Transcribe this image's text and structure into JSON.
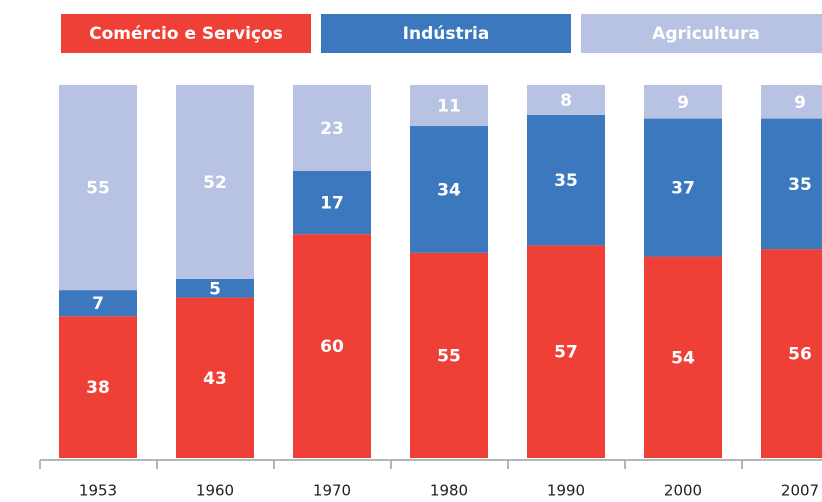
{
  "chart_data": {
    "type": "stacked_bar",
    "categories": [
      "1953",
      "1960",
      "1970",
      "1980",
      "1990",
      "2000",
      "2007"
    ],
    "series": [
      {
        "name": "Comércio e Serviços",
        "color": "#ee4036",
        "values": [
          38,
          43,
          60,
          55,
          57,
          54,
          56
        ]
      },
      {
        "name": "Indústria",
        "color": "#3b78be",
        "values": [
          7,
          5,
          17,
          34,
          35,
          37,
          35
        ]
      },
      {
        "name": "Agricultura",
        "color": "#b8c2e2",
        "values": [
          55,
          52,
          23,
          11,
          8,
          9,
          9
        ]
      }
    ],
    "ylim": [
      0,
      100
    ]
  }
}
